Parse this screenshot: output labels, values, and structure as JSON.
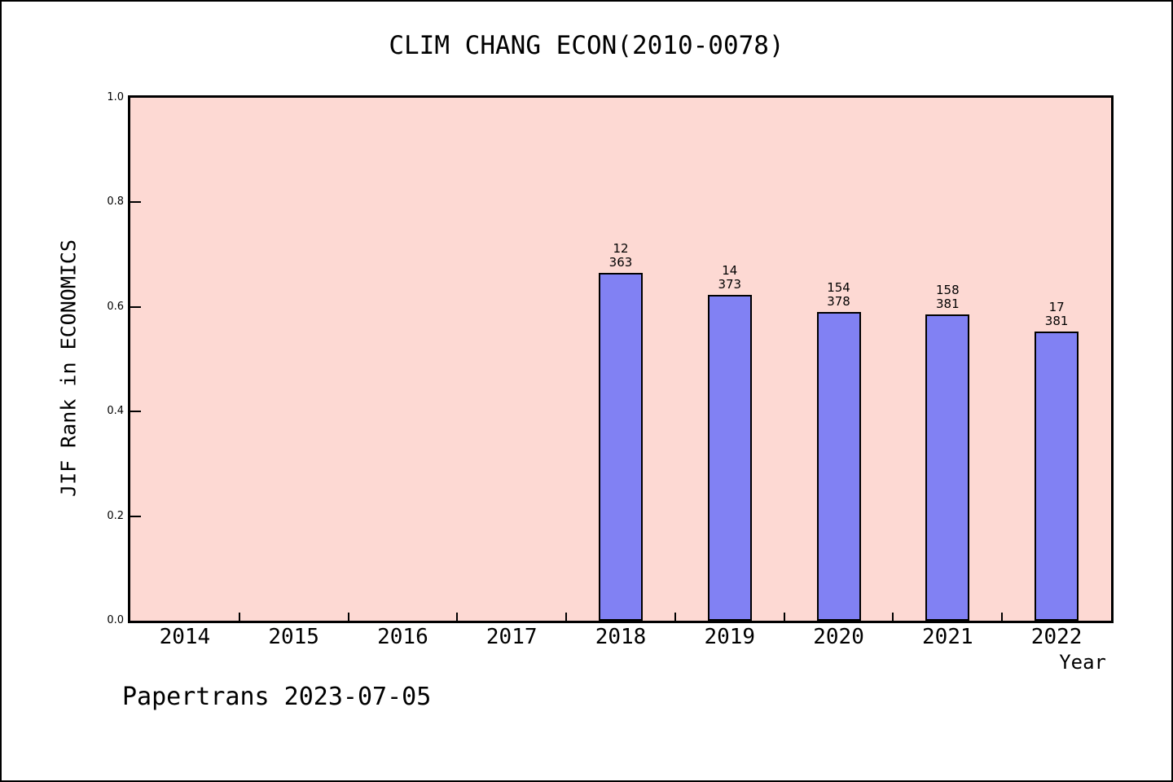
{
  "footer": {
    "text": "Papertrans 2023-07-05"
  },
  "chart_data": {
    "type": "bar",
    "title": "CLIM CHANG ECON(2010-0078)",
    "xlabel": "Year",
    "ylabel": "JIF Rank in ECONOMICS",
    "categories": [
      "2014",
      "2015",
      "2016",
      "2017",
      "2018",
      "2019",
      "2020",
      "2021",
      "2022"
    ],
    "bars": [
      {
        "year": "2018",
        "rank": "12",
        "total": "363",
        "height": 0.665
      },
      {
        "year": "2019",
        "rank": "14",
        "total": "373",
        "height": 0.623
      },
      {
        "year": "2020",
        "rank": "154",
        "total": "378",
        "height": 0.59
      },
      {
        "year": "2021",
        "rank": "158",
        "total": "381",
        "height": 0.586
      },
      {
        "year": "2022",
        "rank": "17",
        "total": "381",
        "height": 0.553
      }
    ],
    "yticks": [
      "0.0",
      "0.2",
      "0.4",
      "0.6",
      "0.8",
      "1.0"
    ],
    "ylim": [
      0.0,
      1.0
    ],
    "grid": "off",
    "legend": "none",
    "colors": {
      "bar_fill": "#8181f3",
      "bar_edge": "#000000",
      "plot_background": "#fdd9d3",
      "text": "#000000"
    }
  }
}
